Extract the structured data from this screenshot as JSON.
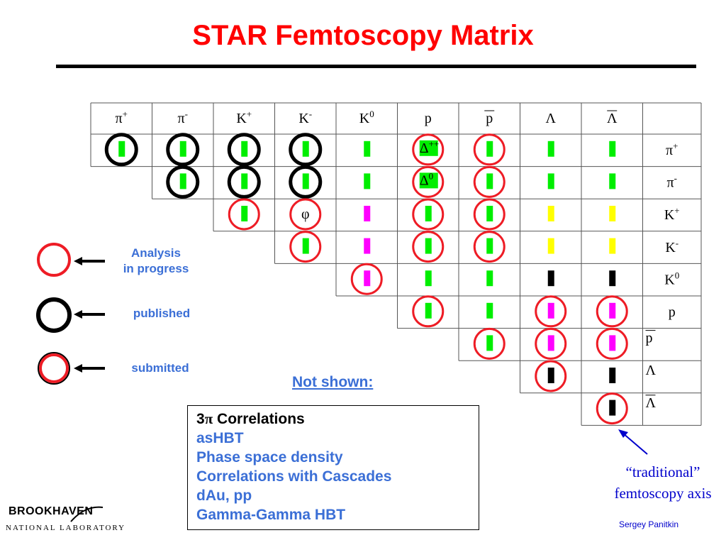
{
  "title": "STAR Femtoscopy Matrix",
  "columns": [
    {
      "base": "π",
      "sup": "+",
      "bar": false
    },
    {
      "base": "π",
      "sup": "-",
      "bar": false
    },
    {
      "base": "K",
      "sup": "+",
      "bar": false
    },
    {
      "base": "K",
      "sup": "-",
      "bar": false
    },
    {
      "base": "K",
      "sup": "0",
      "bar": false
    },
    {
      "base": "p",
      "sup": "",
      "bar": false
    },
    {
      "base": "p",
      "sup": "",
      "bar": true
    },
    {
      "base": "Λ",
      "sup": "",
      "bar": false
    },
    {
      "base": "Λ",
      "sup": "",
      "bar": true
    }
  ],
  "rows": [
    {
      "base": "π",
      "sup": "+",
      "bar": false
    },
    {
      "base": "π",
      "sup": "-",
      "bar": false
    },
    {
      "base": "K",
      "sup": "+",
      "bar": false
    },
    {
      "base": "K",
      "sup": "-",
      "bar": false
    },
    {
      "base": "K",
      "sup": "0",
      "bar": false
    },
    {
      "base": "p",
      "sup": "",
      "bar": false
    },
    {
      "base": "p",
      "sup": "",
      "bar": true
    },
    {
      "base": "Λ",
      "sup": "",
      "bar": false
    },
    {
      "base": "Λ",
      "sup": "",
      "bar": true
    }
  ],
  "colors": {
    "green": "#00ee00",
    "magenta": "#ff00ff",
    "yellow": "#ffff00",
    "black": "#000000",
    "red_circle": "#ee1c25",
    "black_circle": "#000000",
    "title": "#ff0000",
    "blue_text": "#3b6fd6"
  },
  "cells": [
    {
      "row": 0,
      "col": 0,
      "mark": "green",
      "circle": "black"
    },
    {
      "row": 0,
      "col": 1,
      "mark": "green",
      "circle": "black"
    },
    {
      "row": 0,
      "col": 2,
      "mark": "green",
      "circle": "black"
    },
    {
      "row": 0,
      "col": 3,
      "mark": "green",
      "circle": "black"
    },
    {
      "row": 0,
      "col": 4,
      "mark": "green",
      "circle": "none"
    },
    {
      "row": 0,
      "col": 5,
      "mark": "delta",
      "text": "Δ",
      "sup": "++",
      "circle": "red"
    },
    {
      "row": 0,
      "col": 6,
      "mark": "green",
      "circle": "red"
    },
    {
      "row": 0,
      "col": 7,
      "mark": "green",
      "circle": "none"
    },
    {
      "row": 0,
      "col": 8,
      "mark": "green",
      "circle": "none"
    },
    {
      "row": 1,
      "col": 1,
      "mark": "green",
      "circle": "black"
    },
    {
      "row": 1,
      "col": 2,
      "mark": "green",
      "circle": "black"
    },
    {
      "row": 1,
      "col": 3,
      "mark": "green",
      "circle": "black"
    },
    {
      "row": 1,
      "col": 4,
      "mark": "green",
      "circle": "none"
    },
    {
      "row": 1,
      "col": 5,
      "mark": "delta",
      "text": "Δ",
      "sup": "0",
      "circle": "red"
    },
    {
      "row": 1,
      "col": 6,
      "mark": "green",
      "circle": "red"
    },
    {
      "row": 1,
      "col": 7,
      "mark": "green",
      "circle": "none"
    },
    {
      "row": 1,
      "col": 8,
      "mark": "green",
      "circle": "none"
    },
    {
      "row": 2,
      "col": 2,
      "mark": "green",
      "circle": "red"
    },
    {
      "row": 2,
      "col": 3,
      "mark": "phi",
      "text": "φ",
      "circle": "red"
    },
    {
      "row": 2,
      "col": 4,
      "mark": "magenta",
      "circle": "none"
    },
    {
      "row": 2,
      "col": 5,
      "mark": "green",
      "circle": "red"
    },
    {
      "row": 2,
      "col": 6,
      "mark": "green",
      "circle": "red"
    },
    {
      "row": 2,
      "col": 7,
      "mark": "yellow",
      "circle": "none"
    },
    {
      "row": 2,
      "col": 8,
      "mark": "yellow",
      "circle": "none"
    },
    {
      "row": 3,
      "col": 3,
      "mark": "green",
      "circle": "red"
    },
    {
      "row": 3,
      "col": 4,
      "mark": "magenta",
      "circle": "none"
    },
    {
      "row": 3,
      "col": 5,
      "mark": "green",
      "circle": "red"
    },
    {
      "row": 3,
      "col": 6,
      "mark": "green",
      "circle": "red"
    },
    {
      "row": 3,
      "col": 7,
      "mark": "yellow",
      "circle": "none"
    },
    {
      "row": 3,
      "col": 8,
      "mark": "yellow",
      "circle": "none"
    },
    {
      "row": 4,
      "col": 4,
      "mark": "magenta",
      "circle": "red"
    },
    {
      "row": 4,
      "col": 5,
      "mark": "green",
      "circle": "none"
    },
    {
      "row": 4,
      "col": 6,
      "mark": "green",
      "circle": "none"
    },
    {
      "row": 4,
      "col": 7,
      "mark": "black",
      "circle": "none"
    },
    {
      "row": 4,
      "col": 8,
      "mark": "black",
      "circle": "none"
    },
    {
      "row": 5,
      "col": 5,
      "mark": "green",
      "circle": "red"
    },
    {
      "row": 5,
      "col": 6,
      "mark": "green",
      "circle": "none"
    },
    {
      "row": 5,
      "col": 7,
      "mark": "magenta",
      "circle": "red"
    },
    {
      "row": 5,
      "col": 8,
      "mark": "magenta",
      "circle": "red"
    },
    {
      "row": 6,
      "col": 6,
      "mark": "green",
      "circle": "red"
    },
    {
      "row": 6,
      "col": 7,
      "mark": "magenta",
      "circle": "red"
    },
    {
      "row": 6,
      "col": 8,
      "mark": "magenta",
      "circle": "red"
    },
    {
      "row": 7,
      "col": 7,
      "mark": "black",
      "circle": "red"
    },
    {
      "row": 7,
      "col": 8,
      "mark": "black",
      "circle": "none"
    },
    {
      "row": 8,
      "col": 8,
      "mark": "black",
      "circle": "red"
    }
  ],
  "legend": [
    {
      "circle": "red",
      "label": "Analysis in progress",
      "lines": [
        "Analysis",
        "in progress"
      ]
    },
    {
      "circle": "black",
      "label": "published",
      "lines": [
        "published"
      ]
    },
    {
      "circle": "red-filled-ring",
      "label": "submitted",
      "lines": [
        "submitted"
      ]
    }
  ],
  "not_shown": {
    "heading": "Not shown:",
    "first_prefix": "3",
    "first_symbol": "π",
    "first_suffix": " Correlations",
    "items": [
      "asHBT",
      "Phase space density",
      "Correlations with Cascades",
      "dAu, pp",
      "Gamma-Gamma HBT"
    ]
  },
  "annotation": {
    "line1": "“traditional”",
    "line2": "femtoscopy axis"
  },
  "author": "Sergey  Panitkin",
  "logo": {
    "main": "BROOKHAVEN",
    "sub": "NATIONAL LABORATORY"
  }
}
